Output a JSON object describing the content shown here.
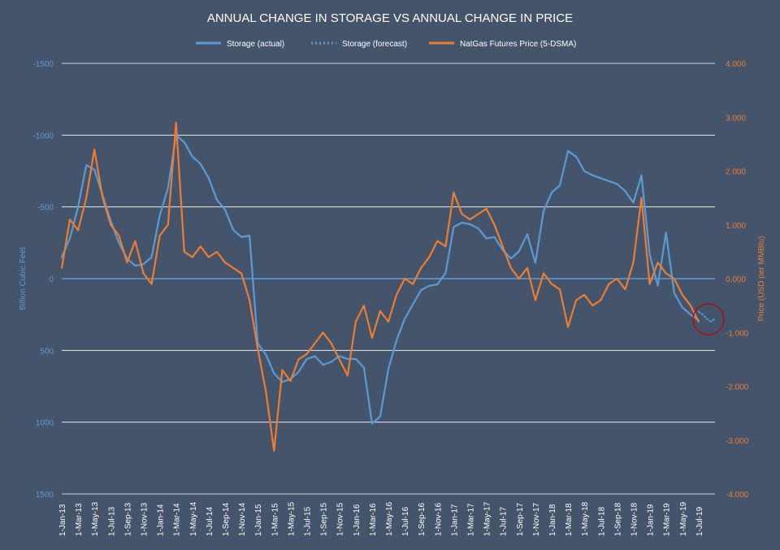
{
  "chart_data": {
    "type": "line",
    "title": "ANNUAL CHANGE IN STORAGE VS ANNUAL CHANGE IN PRICE",
    "legend": {
      "position": "top",
      "entries": [
        {
          "name": "Storage (actual)",
          "style": "solid",
          "color": "#5b9bd5"
        },
        {
          "name": "Storage (forecast)",
          "style": "dotted",
          "color": "#5b9bd5"
        },
        {
          "name": "NatGas Futures Price (5-DSMA)",
          "style": "solid",
          "color": "#ed7d31"
        }
      ]
    },
    "ylabel_left": "Billion Cubic Feet",
    "ylabel_right": "Price (USD per MMBtu)",
    "left_axis": {
      "min": -1500,
      "max": 1500,
      "inverted": true,
      "ticks": [
        -1500,
        -1000,
        -500,
        0,
        500,
        1000,
        1500
      ],
      "tick_labels": [
        "-1500",
        "-1000",
        "-500",
        "0",
        "500",
        "1000",
        "1500"
      ]
    },
    "right_axis": {
      "min": -4,
      "max": 4,
      "ticks": [
        4,
        3,
        2,
        1,
        0,
        -1,
        -2,
        -3,
        -4
      ],
      "tick_labels": [
        "4.000",
        "3.000",
        "2.000",
        "1.000",
        "0.000",
        "-1.000",
        "-2.000",
        "-3.000",
        "-4.000"
      ]
    },
    "x_axis": {
      "start_month_index": 0,
      "end_month_index": 80,
      "tick_month_indices": [
        0,
        2,
        4,
        6,
        8,
        10,
        12,
        14,
        16,
        18,
        20,
        22,
        24,
        26,
        28,
        30,
        32,
        34,
        36,
        38,
        40,
        42,
        44,
        46,
        48,
        50,
        52,
        54,
        56,
        58,
        60,
        62,
        64,
        66,
        68,
        70,
        72,
        74,
        76,
        78
      ],
      "tick_labels": [
        "1-Jan-13",
        "1-Mar-13",
        "1-May-13",
        "1-Jul-13",
        "1-Sep-13",
        "1-Nov-13",
        "1-Jan-14",
        "1-Mar-14",
        "1-May-14",
        "1-Jul-14",
        "1-Sep-14",
        "1-Nov-14",
        "1-Jan-15",
        "1-Mar-15",
        "1-May-15",
        "1-Jul-15",
        "1-Sep-15",
        "1-Nov-15",
        "1-Jan-16",
        "1-Mar-16",
        "1-May-16",
        "1-Jul-16",
        "1-Sep-16",
        "1-Nov-16",
        "1-Jan-17",
        "1-Mar-17",
        "1-May-17",
        "1-Jul-17",
        "1-Sep-17",
        "1-Nov-17",
        "1-Jan-18",
        "1-Mar-18",
        "1-May-18",
        "1-Jul-18",
        "1-Sep-18",
        "1-Nov-18",
        "1-Jan-19",
        "1-Mar-19",
        "1-May-19",
        "1-Jul-19"
      ]
    },
    "series": [
      {
        "name": "Storage (actual)",
        "axis": "left",
        "x_month": [
          0,
          1,
          2,
          3,
          4,
          5,
          6,
          7,
          8,
          9,
          10,
          11,
          12,
          13,
          14,
          15,
          16,
          17,
          18,
          19,
          20,
          21,
          22,
          23,
          24,
          25,
          26,
          27,
          28,
          29,
          30,
          31,
          32,
          33,
          34,
          35,
          36,
          37,
          38,
          39,
          40,
          41,
          42,
          43,
          44,
          45,
          46,
          47,
          48,
          49,
          50,
          51,
          52,
          53,
          54,
          55,
          56,
          57,
          58,
          59,
          60,
          61,
          62,
          63,
          64,
          65,
          66,
          67,
          68,
          69,
          70,
          71,
          72,
          73,
          74,
          75,
          76,
          77,
          78
        ],
        "values": [
          -150,
          -280,
          -500,
          -790,
          -760,
          -580,
          -400,
          -250,
          -140,
          -90,
          -100,
          -150,
          -440,
          -630,
          -1000,
          -950,
          -850,
          -800,
          -700,
          -550,
          -480,
          -340,
          -290,
          -300,
          450,
          530,
          660,
          720,
          700,
          650,
          560,
          540,
          600,
          580,
          540,
          560,
          560,
          620,
          1010,
          960,
          630,
          430,
          280,
          180,
          80,
          50,
          40,
          -40,
          -360,
          -390,
          -380,
          -350,
          -280,
          -290,
          -200,
          -140,
          -190,
          -310,
          -110,
          -470,
          -600,
          -650,
          -890,
          -850,
          -750,
          -720,
          -700,
          -680,
          -660,
          -610,
          -530,
          -720,
          -170,
          50,
          -320,
          100,
          200,
          250,
          290
        ]
      },
      {
        "name": "Storage (forecast)",
        "axis": "left",
        "x_month": [
          78,
          78.5,
          79,
          79.5,
          80
        ],
        "values": [
          230,
          250,
          280,
          300,
          280
        ]
      },
      {
        "name": "NatGas Futures Price (5-DSMA)",
        "axis": "right",
        "x_month": [
          0,
          1,
          2,
          3,
          4,
          5,
          6,
          7,
          8,
          9,
          10,
          11,
          12,
          13,
          14,
          15,
          16,
          17,
          18,
          19,
          20,
          21,
          22,
          23,
          24,
          25,
          26,
          27,
          28,
          29,
          30,
          31,
          32,
          33,
          34,
          35,
          36,
          37,
          38,
          39,
          40,
          41,
          42,
          43,
          44,
          45,
          46,
          47,
          48,
          49,
          50,
          51,
          52,
          53,
          54,
          55,
          56,
          57,
          58,
          59,
          60,
          61,
          62,
          63,
          64,
          65,
          66,
          67,
          68,
          69,
          70,
          71,
          72,
          73,
          74,
          75,
          76,
          77,
          78
        ],
        "values": [
          0.2,
          1.1,
          0.9,
          1.5,
          2.4,
          1.5,
          1.0,
          0.8,
          0.3,
          0.7,
          0.1,
          -0.1,
          0.8,
          1.0,
          2.9,
          0.5,
          0.4,
          0.6,
          0.4,
          0.5,
          0.3,
          0.2,
          0.1,
          -0.4,
          -1.3,
          -2.1,
          -3.2,
          -1.7,
          -1.9,
          -1.5,
          -1.4,
          -1.2,
          -1.0,
          -1.2,
          -1.5,
          -1.8,
          -0.8,
          -0.5,
          -1.1,
          -0.6,
          -0.8,
          -0.3,
          0.0,
          -0.1,
          0.2,
          0.4,
          0.7,
          0.6,
          1.6,
          1.2,
          1.1,
          1.2,
          1.3,
          1.0,
          0.6,
          0.2,
          0.0,
          0.2,
          -0.4,
          0.1,
          -0.1,
          -0.2,
          -0.9,
          -0.4,
          -0.3,
          -0.5,
          -0.4,
          -0.1,
          0.0,
          -0.2,
          0.3,
          1.5,
          -0.1,
          0.3,
          0.1,
          0.0,
          -0.3,
          -0.5,
          -0.8
        ]
      }
    ],
    "annotation": {
      "type": "circle",
      "color": "#c00000",
      "at_month": 79.5,
      "at_value_left": 250
    }
  }
}
